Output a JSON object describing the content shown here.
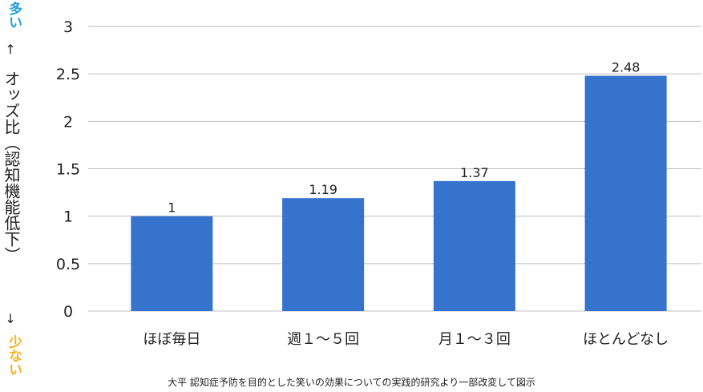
{
  "side": {
    "top_label": "多い",
    "up_arrow": "↑",
    "ylabel": "オッズ比（認知機能低下）",
    "down_arrow": "↓",
    "bottom_label": "少ない"
  },
  "caption": "大平 認知症予防を目的とした笑いの効果についての実践的研究より一部改変して図示",
  "chart_data": {
    "type": "bar",
    "categories": [
      "ほぼ毎日",
      "週１～５回",
      "月１～３回",
      "ほとんどなし"
    ],
    "values": [
      1,
      1.19,
      1.37,
      2.48
    ],
    "data_labels": [
      "1",
      "1.19",
      "1.37",
      "2.48"
    ],
    "yticks": [
      "0",
      "0.5",
      "1",
      "1.5",
      "2",
      "2.5",
      "3"
    ],
    "ylim": [
      0,
      3
    ],
    "grid": true,
    "bar_color": "#3673cd"
  }
}
